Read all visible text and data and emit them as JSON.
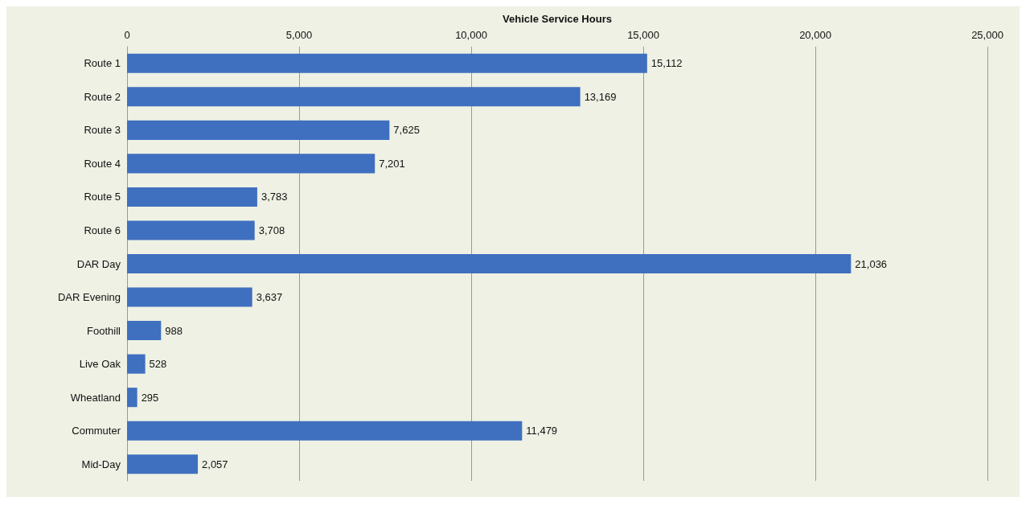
{
  "chart_data": {
    "type": "bar",
    "orientation": "horizontal",
    "xlabel": "Vehicle Service Hours",
    "categories": [
      "Route 1",
      "Route 2",
      "Route 3",
      "Route 4",
      "Route 5",
      "Route 6",
      "DAR Day",
      "DAR Evening",
      "Foothill",
      "Live Oak",
      "Wheatland",
      "Commuter",
      "Mid-Day"
    ],
    "values": [
      15112,
      13169,
      7625,
      7201,
      3783,
      3708,
      21036,
      3637,
      988,
      528,
      295,
      11479,
      2057
    ],
    "value_labels": [
      "15,112",
      "13,169",
      "7,625",
      "7,201",
      "3,783",
      "3,708",
      "21,036",
      "3,637",
      "988",
      "528",
      "295",
      "11,479",
      "2,057"
    ],
    "color": "#3f6fbf",
    "xlim": [
      0,
      25000
    ],
    "xticks": [
      0,
      {
        "value": 5000,
        "label": "5,000"
      },
      {
        "value": 10000,
        "label": "10,000"
      },
      {
        "value": 15000,
        "label": "15,000"
      },
      {
        "value": 20000,
        "label": "20,000"
      },
      {
        "value": 25000,
        "label": "25,000"
      }
    ],
    "grid": "x"
  }
}
